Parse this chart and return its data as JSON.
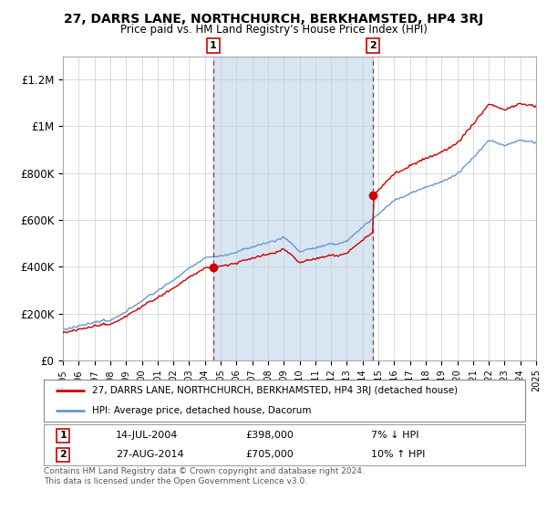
{
  "title": "27, DARRS LANE, NORTHCHURCH, BERKHAMSTED, HP4 3RJ",
  "subtitle": "Price paid vs. HM Land Registry's House Price Index (HPI)",
  "legend_line1": "27, DARRS LANE, NORTHCHURCH, BERKHAMSTED, HP4 3RJ (detached house)",
  "legend_line2": "HPI: Average price, detached house, Dacorum",
  "transaction1_label": "1",
  "transaction1_date": "14-JUL-2004",
  "transaction1_price": "£398,000",
  "transaction1_hpi": "7% ↓ HPI",
  "transaction1_year": 2004.54,
  "transaction1_value": 398000,
  "transaction2_label": "2",
  "transaction2_date": "27-AUG-2014",
  "transaction2_price": "£705,000",
  "transaction2_hpi": "10% ↑ HPI",
  "transaction2_year": 2014.65,
  "transaction2_value": 705000,
  "footer": "Contains HM Land Registry data © Crown copyright and database right 2024.\nThis data is licensed under the Open Government Licence v3.0.",
  "red_color": "#cc0000",
  "blue_color": "#6699cc",
  "shade_color": "#ddeeff",
  "background_color": "#ffffff",
  "grid_color": "#cccccc",
  "ylim": [
    0,
    1300000
  ],
  "yticks": [
    0,
    200000,
    400000,
    600000,
    800000,
    1000000,
    1200000
  ],
  "ytick_labels": [
    "£0",
    "£200K",
    "£400K",
    "£600K",
    "£800K",
    "£1M",
    "£1.2M"
  ],
  "xstart": 1995,
  "xend": 2025
}
